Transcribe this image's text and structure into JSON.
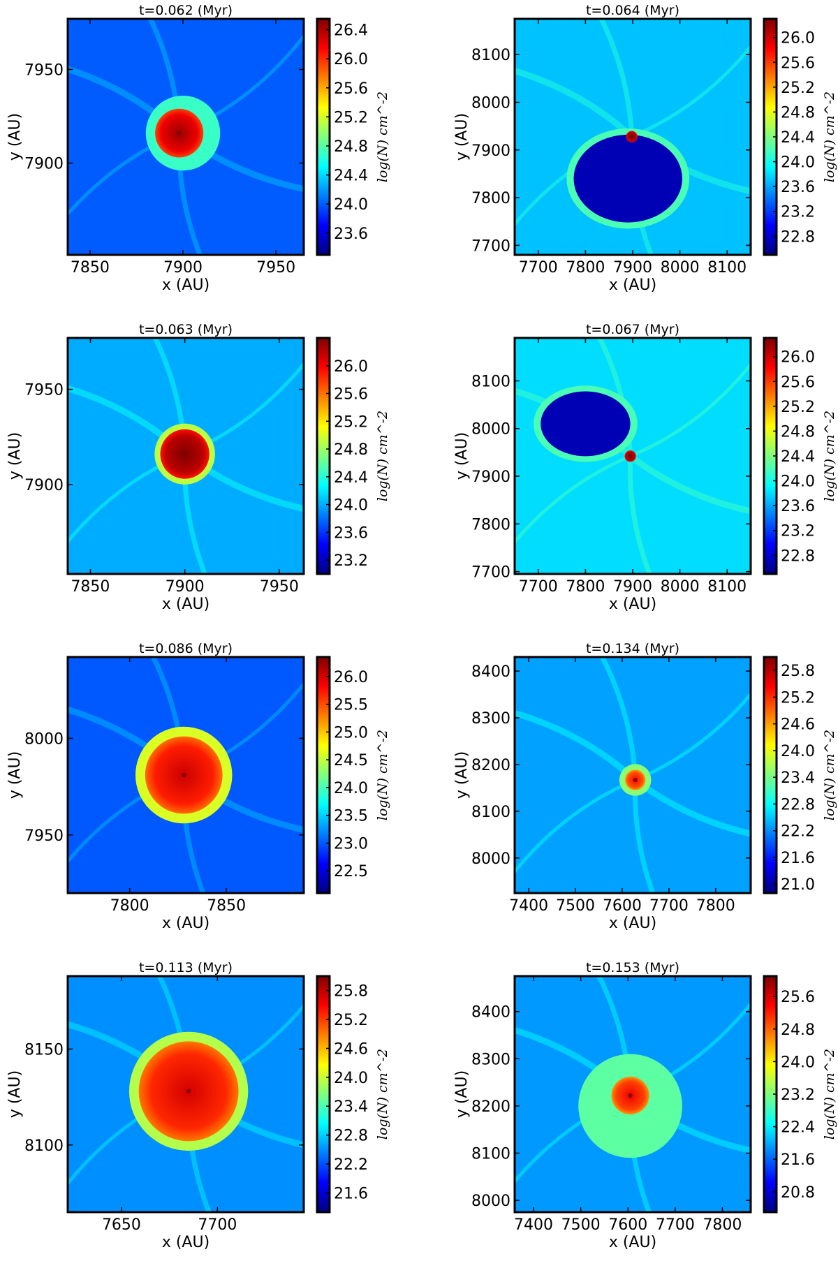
{
  "figure": {
    "colors": {
      "jet": [
        "#00007f",
        "#0000ff",
        "#007fff",
        "#00ffff",
        "#7fff7f",
        "#ffff00",
        "#ff7f00",
        "#ff0000",
        "#7f0000"
      ],
      "frame": "#000000"
    }
  },
  "chart_data": [
    {
      "type": "heatmap",
      "title": "t=0.062 (Myr)",
      "xlabel": "x (AU)",
      "ylabel": "y (AU)",
      "colorbar_label": "log(N) cm^-2",
      "xlim": [
        7838,
        7965
      ],
      "ylim": [
        7851,
        7977
      ],
      "xticks": [
        7850,
        7900,
        7950
      ],
      "yticks": [
        7900,
        7950
      ],
      "xtick_labels": [
        "7850",
        "7900",
        "7950"
      ],
      "ytick_labels": [
        "7900",
        "7950"
      ],
      "clim": [
        23.3,
        26.55
      ],
      "cticks": [
        23.6,
        24.0,
        24.4,
        24.8,
        25.2,
        25.6,
        26.0,
        26.4
      ],
      "ctick_labels": [
        "23.6",
        "24.0",
        "24.4",
        "24.8",
        "25.2",
        "25.6",
        "26.0",
        "26.4"
      ],
      "background_level": 24.0,
      "core": {
        "x": 7898,
        "y": 7916,
        "radius": 13,
        "level": 26.2
      },
      "envelope": {
        "x": 7900,
        "y": 7916,
        "radius": 20,
        "level": 24.7
      }
    },
    {
      "type": "heatmap",
      "title": "t=0.064 (Myr)",
      "xlabel": "x (AU)",
      "ylabel": "y (AU)",
      "colorbar_label": "log(N) cm^-2",
      "xlim": [
        7650,
        8150
      ],
      "ylim": [
        7680,
        8175
      ],
      "xticks": [
        7700,
        7800,
        7900,
        8000,
        8100
      ],
      "yticks": [
        7700,
        7800,
        7900,
        8000,
        8100
      ],
      "xtick_labels": [
        "7700",
        "7800",
        "7900",
        "8000",
        "8100"
      ],
      "ytick_labels": [
        "7700",
        "7800",
        "7900",
        "8000",
        "8100"
      ],
      "clim": [
        22.5,
        26.3
      ],
      "cticks": [
        22.8,
        23.2,
        23.6,
        24.0,
        24.4,
        24.8,
        25.2,
        25.6,
        26.0
      ],
      "ctick_labels": [
        "22.8",
        "23.2",
        "23.6",
        "24.0",
        "24.4",
        "24.8",
        "25.2",
        "25.6",
        "26.0"
      ],
      "background_level": 23.7,
      "core": {
        "x": 7898,
        "y": 7928,
        "radius": 12,
        "level": 26.1
      },
      "shell": {
        "x": 7890,
        "y": 7840,
        "rx": 130,
        "ry": 105,
        "level": 24.2
      },
      "cavity": {
        "x": 7890,
        "y": 7840,
        "rx": 115,
        "ry": 92,
        "level": 22.7
      }
    },
    {
      "type": "heatmap",
      "title": "t=0.063 (Myr)",
      "xlabel": "x (AU)",
      "ylabel": "y (AU)",
      "colorbar_label": "log(N) cm^-2",
      "xlim": [
        7838,
        7963
      ],
      "ylim": [
        7853,
        7977
      ],
      "xticks": [
        7850,
        7900,
        7950
      ],
      "yticks": [
        7900,
        7950
      ],
      "xtick_labels": [
        "7850",
        "7900",
        "7950"
      ],
      "ytick_labels": [
        "7900",
        "7950"
      ],
      "clim": [
        23.0,
        26.4
      ],
      "cticks": [
        23.2,
        23.6,
        24.0,
        24.4,
        24.8,
        25.2,
        25.6,
        26.0
      ],
      "ctick_labels": [
        "23.2",
        "23.6",
        "24.0",
        "24.4",
        "24.8",
        "25.2",
        "25.6",
        "26.0"
      ],
      "background_level": 24.0,
      "core": {
        "x": 7900,
        "y": 7916,
        "radius": 13,
        "level": 26.2
      },
      "envelope": {
        "x": 7900,
        "y": 7916,
        "radius": 16,
        "level": 24.9
      }
    },
    {
      "type": "heatmap",
      "title": "t=0.067 (Myr)",
      "xlabel": "x (AU)",
      "ylabel": "y (AU)",
      "colorbar_label": "log(N) cm^-2",
      "xlim": [
        7650,
        8150
      ],
      "ylim": [
        7695,
        8190
      ],
      "xticks": [
        7700,
        7800,
        7900,
        8000,
        8100
      ],
      "yticks": [
        7700,
        7800,
        7900,
        8000,
        8100
      ],
      "xtick_labels": [
        "7700",
        "7800",
        "7900",
        "8000",
        "8100"
      ],
      "ytick_labels": [
        "7700",
        "7800",
        "7900",
        "8000",
        "8100"
      ],
      "clim": [
        22.5,
        26.3
      ],
      "cticks": [
        22.8,
        23.2,
        23.6,
        24.0,
        24.4,
        24.8,
        25.2,
        25.6,
        26.0
      ],
      "ctick_labels": [
        "22.8",
        "23.2",
        "23.6",
        "24.0",
        "24.4",
        "24.8",
        "25.2",
        "25.6",
        "26.0"
      ],
      "background_level": 23.8,
      "core": {
        "x": 7895,
        "y": 7942,
        "radius": 12,
        "level": 26.1
      },
      "shell": {
        "x": 7800,
        "y": 8010,
        "rx": 110,
        "ry": 80,
        "level": 24.2
      },
      "cavity": {
        "x": 7800,
        "y": 8010,
        "rx": 95,
        "ry": 68,
        "level": 22.7
      }
    },
    {
      "type": "heatmap",
      "title": "t=0.086 (Myr)",
      "xlabel": "x (AU)",
      "ylabel": "y (AU)",
      "colorbar_label": "log(N) cm^-2",
      "xlim": [
        7768,
        7890
      ],
      "ylim": [
        7920,
        8042
      ],
      "xticks": [
        7800,
        7850
      ],
      "yticks": [
        7950,
        8000
      ],
      "xtick_labels": [
        "7800",
        "7850"
      ],
      "ytick_labels": [
        "7950",
        "8000"
      ],
      "clim": [
        22.1,
        26.35
      ],
      "cticks": [
        22.5,
        23.0,
        23.5,
        24.0,
        24.5,
        25.0,
        25.5,
        26.0
      ],
      "ctick_labels": [
        "22.5",
        "23.0",
        "23.5",
        "24.0",
        "24.5",
        "25.0",
        "25.5",
        "26.0"
      ],
      "background_level": 23.0,
      "core": {
        "x": 7828,
        "y": 7981,
        "radius": 20,
        "level": 25.7
      },
      "envelope": {
        "x": 7828,
        "y": 7981,
        "radius": 25,
        "level": 24.6
      }
    },
    {
      "type": "heatmap",
      "title": "t=0.134 (Myr)",
      "xlabel": "x (AU)",
      "ylabel": "y (AU)",
      "colorbar_label": "log(N) cm^-2",
      "xlim": [
        7370,
        7875
      ],
      "ylim": [
        7925,
        8430
      ],
      "xticks": [
        7400,
        7500,
        7600,
        7700,
        7800
      ],
      "yticks": [
        8000,
        8100,
        8200,
        8300,
        8400
      ],
      "xtick_labels": [
        "7400",
        "7500",
        "7600",
        "7700",
        "7800"
      ],
      "ytick_labels": [
        "8000",
        "8100",
        "8200",
        "8300",
        "8400"
      ],
      "clim": [
        20.8,
        26.1
      ],
      "cticks": [
        21.0,
        21.6,
        22.2,
        22.8,
        23.4,
        24.0,
        24.6,
        25.2,
        25.8
      ],
      "ctick_labels": [
        "21.0",
        "21.6",
        "22.2",
        "22.8",
        "23.4",
        "24.0",
        "24.6",
        "25.2",
        "25.8"
      ],
      "background_level": 22.3,
      "core": {
        "x": 7628,
        "y": 8167,
        "radius": 22,
        "level": 25.0
      },
      "envelope": {
        "x": 7628,
        "y": 8167,
        "radius": 34,
        "level": 23.5
      }
    },
    {
      "type": "heatmap",
      "title": "t=0.113 (Myr)",
      "xlabel": "x (AU)",
      "ylabel": "y (AU)",
      "colorbar_label": "log(N) cm^-2",
      "xlim": [
        7622,
        7745
      ],
      "ylim": [
        8065,
        8188
      ],
      "xticks": [
        7650,
        7700
      ],
      "yticks": [
        8100,
        8150
      ],
      "xtick_labels": [
        "7650",
        "7700"
      ],
      "ytick_labels": [
        "8100",
        "8150"
      ],
      "clim": [
        21.2,
        26.1
      ],
      "cticks": [
        21.6,
        22.2,
        22.8,
        23.4,
        24.0,
        24.6,
        25.2,
        25.8
      ],
      "ctick_labels": [
        "21.6",
        "22.2",
        "22.8",
        "23.4",
        "24.0",
        "24.6",
        "25.2",
        "25.8"
      ],
      "background_level": 22.5,
      "core": {
        "x": 7685,
        "y": 8128,
        "radius": 26,
        "level": 25.3
      },
      "envelope": {
        "x": 7685,
        "y": 8128,
        "radius": 31,
        "level": 23.9
      }
    },
    {
      "type": "heatmap",
      "title": "t=0.153 (Myr)",
      "xlabel": "x (AU)",
      "ylabel": "y (AU)",
      "colorbar_label": "log(N) cm^-2",
      "xlim": [
        7360,
        7860
      ],
      "ylim": [
        7975,
        8475
      ],
      "xticks": [
        7400,
        7500,
        7600,
        7700,
        7800
      ],
      "yticks": [
        8000,
        8100,
        8200,
        8300,
        8400
      ],
      "xtick_labels": [
        "7400",
        "7500",
        "7600",
        "7700",
        "7800"
      ],
      "ytick_labels": [
        "8000",
        "8100",
        "8200",
        "8300",
        "8400"
      ],
      "clim": [
        20.3,
        26.1
      ],
      "cticks": [
        20.8,
        21.6,
        22.4,
        23.2,
        24.0,
        24.8,
        25.6
      ],
      "ctick_labels": [
        "20.8",
        "21.6",
        "22.4",
        "23.2",
        "24.0",
        "24.8",
        "25.6"
      ],
      "background_level": 21.9,
      "core": {
        "x": 7605,
        "y": 8222,
        "radius": 40,
        "level": 25.0
      },
      "envelope": {
        "x": 7605,
        "y": 8200,
        "radius": 110,
        "level": 23.0
      }
    }
  ]
}
